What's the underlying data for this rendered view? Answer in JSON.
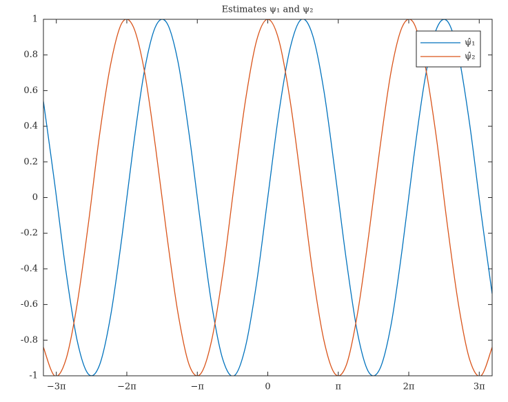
{
  "chart_data": {
    "type": "line",
    "title": "Estimates ψ₁ and ψ₂",
    "x": [
      -10,
      -9.5,
      -9,
      -8.5,
      -8,
      -7.5,
      -7,
      -6.5,
      -6,
      -5.5,
      -5,
      -4.5,
      -4,
      -3.5,
      -3,
      -2.5,
      -2,
      -1.5,
      -1,
      -0.5,
      0,
      0.5,
      1,
      1.5,
      2,
      2.5,
      3,
      3.5,
      4,
      4.5,
      5,
      5.5,
      6,
      6.5,
      7,
      7.5,
      8,
      8.5,
      9,
      9.5,
      10
    ],
    "series": [
      {
        "name": "ψ̂₁",
        "color": "#0072bd",
        "values": [
          0.54,
          0.08,
          -0.41,
          -0.8,
          -0.99,
          -0.94,
          -0.66,
          -0.22,
          0.28,
          0.71,
          0.96,
          0.98,
          0.76,
          0.35,
          -0.14,
          -0.6,
          -0.91,
          -1.0,
          -0.84,
          -0.48,
          0,
          0.48,
          0.84,
          1.0,
          0.91,
          0.6,
          0.14,
          -0.35,
          -0.76,
          -0.98,
          -0.96,
          -0.71,
          -0.28,
          0.22,
          0.66,
          0.94,
          0.99,
          0.8,
          0.41,
          -0.08,
          -0.54
        ]
      },
      {
        "name": "ψ̂₂",
        "color": "#d95319",
        "values": [
          -0.84,
          -1.0,
          -0.91,
          -0.6,
          -0.15,
          0.35,
          0.75,
          0.98,
          0.96,
          0.71,
          0.28,
          -0.21,
          -0.65,
          -0.94,
          -0.99,
          -0.8,
          -0.42,
          0.07,
          0.54,
          0.88,
          1,
          0.88,
          0.54,
          0.07,
          -0.42,
          -0.8,
          -0.99,
          -0.94,
          -0.65,
          -0.21,
          0.28,
          0.71,
          0.96,
          0.98,
          0.75,
          0.35,
          -0.15,
          -0.6,
          -0.91,
          -1.0,
          -0.84
        ]
      }
    ],
    "xlim": [
      -10,
      10
    ],
    "xticks": [
      {
        "value": -9.4248,
        "label": "−3π"
      },
      {
        "value": -6.2832,
        "label": "−2π"
      },
      {
        "value": -3.1416,
        "label": "−π"
      },
      0,
      {
        "value": 3.1416,
        "label": "π"
      },
      {
        "value": 6.2832,
        "label": "2π"
      },
      {
        "value": 9.4248,
        "label": "3π"
      }
    ],
    "ylim": [
      -1,
      1
    ],
    "yticks": [
      -1,
      -0.8,
      -0.6,
      -0.4,
      -0.2,
      0,
      0.2,
      0.4,
      0.6,
      0.8,
      1
    ],
    "legend": "top-right"
  }
}
